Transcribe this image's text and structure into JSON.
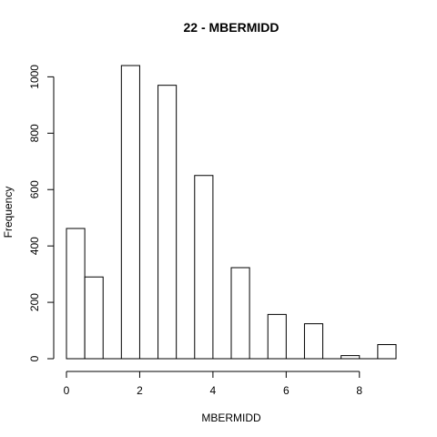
{
  "chart_data": {
    "type": "bar",
    "title": "22 - MBERMIDD",
    "xlabel": "MBERMIDD",
    "ylabel": "Frequency",
    "bins": [
      {
        "x0": 0.0,
        "x1": 0.5,
        "count": 462
      },
      {
        "x0": 0.5,
        "x1": 1.0,
        "count": 290
      },
      {
        "x0": 1.0,
        "x1": 1.5,
        "count": 0
      },
      {
        "x0": 1.5,
        "x1": 2.0,
        "count": 1040
      },
      {
        "x0": 2.0,
        "x1": 2.5,
        "count": 0
      },
      {
        "x0": 2.5,
        "x1": 3.0,
        "count": 970
      },
      {
        "x0": 3.0,
        "x1": 3.5,
        "count": 0
      },
      {
        "x0": 3.5,
        "x1": 4.0,
        "count": 650
      },
      {
        "x0": 4.0,
        "x1": 4.5,
        "count": 0
      },
      {
        "x0": 4.5,
        "x1": 5.0,
        "count": 323
      },
      {
        "x0": 5.0,
        "x1": 5.5,
        "count": 0
      },
      {
        "x0": 5.5,
        "x1": 6.0,
        "count": 157
      },
      {
        "x0": 6.0,
        "x1": 6.5,
        "count": 0
      },
      {
        "x0": 6.5,
        "x1": 7.0,
        "count": 124
      },
      {
        "x0": 7.0,
        "x1": 7.5,
        "count": 0
      },
      {
        "x0": 7.5,
        "x1": 8.0,
        "count": 11
      },
      {
        "x0": 8.0,
        "x1": 8.5,
        "count": 0
      },
      {
        "x0": 8.5,
        "x1": 9.0,
        "count": 50
      }
    ],
    "xlim": [
      0,
      9
    ],
    "ylim": [
      0,
      1040
    ],
    "xticks": [
      0,
      2,
      4,
      6,
      8
    ],
    "yticks": [
      0,
      200,
      400,
      600,
      800,
      1000
    ],
    "grid": false,
    "legend": "none"
  }
}
